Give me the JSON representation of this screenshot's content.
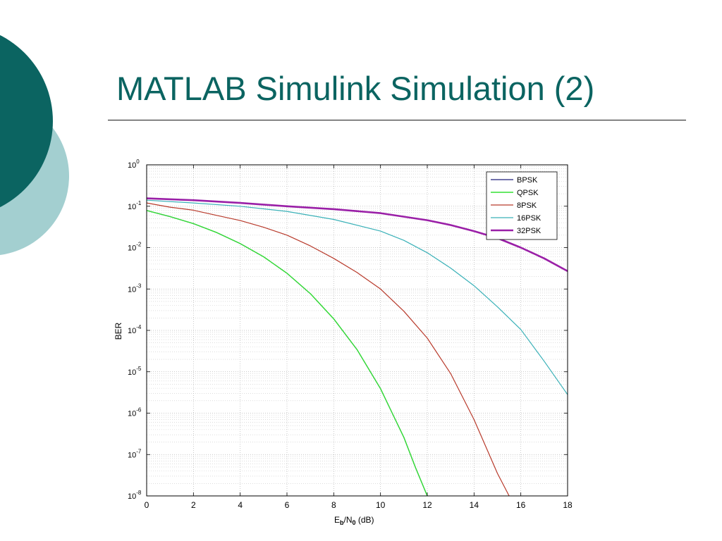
{
  "slide": {
    "title": "MATLAB Simulink Simulation (2)",
    "accent_color": "#0b6461",
    "accent_light_color": "#a3cfd0"
  },
  "chart_data": {
    "type": "line",
    "title": "",
    "xlabel_parts": [
      "E",
      "b",
      "/N",
      "0",
      " (dB)"
    ],
    "ylabel": "BER",
    "xlim": [
      0,
      18
    ],
    "ylim": [
      1e-08,
      1
    ],
    "yscale": "log",
    "grid": true,
    "minor_grid": true,
    "legend_position": "top-right",
    "xticks": [
      0,
      2,
      4,
      6,
      8,
      10,
      12,
      14,
      16,
      18
    ],
    "yticks": [
      {
        "base": "10",
        "exp": "0",
        "value": 1
      },
      {
        "base": "10",
        "exp": "-1",
        "value": 0.1
      },
      {
        "base": "10",
        "exp": "-2",
        "value": 0.01
      },
      {
        "base": "10",
        "exp": "-3",
        "value": 0.001
      },
      {
        "base": "10",
        "exp": "-4",
        "value": 0.0001
      },
      {
        "base": "10",
        "exp": "-5",
        "value": 1e-05
      },
      {
        "base": "10",
        "exp": "-6",
        "value": 1e-06
      },
      {
        "base": "10",
        "exp": "-7",
        "value": 1e-07
      },
      {
        "base": "10",
        "exp": "-8",
        "value": 1e-08
      }
    ],
    "series": [
      {
        "name": "BPSK",
        "color": "#1f1f7a",
        "width": 1.2,
        "x": [
          0,
          1,
          2,
          3,
          4,
          5,
          6,
          7,
          8,
          9,
          10,
          10.5,
          11,
          11.5,
          12
        ],
        "y": [
          0.079,
          0.056,
          0.038,
          0.023,
          0.0125,
          0.006,
          0.0024,
          0.00077,
          0.00019,
          3.4e-05,
          3.9e-06,
          1e-06,
          2.6e-07,
          4.8e-08,
          1e-08
        ]
      },
      {
        "name": "QPSK",
        "color": "#33e033",
        "width": 1.4,
        "x": [
          0,
          1,
          2,
          3,
          4,
          5,
          6,
          7,
          8,
          9,
          10,
          10.5,
          11,
          11.5,
          12
        ],
        "y": [
          0.079,
          0.056,
          0.038,
          0.023,
          0.0125,
          0.006,
          0.0024,
          0.00077,
          0.00019,
          3.4e-05,
          3.9e-06,
          1e-06,
          2.6e-07,
          4.8e-08,
          1e-08
        ]
      },
      {
        "name": "8PSK",
        "color": "#b83a2b",
        "width": 1.2,
        "x": [
          0,
          1,
          2,
          3,
          4,
          5,
          6,
          7,
          8,
          9,
          10,
          11,
          12,
          13,
          14,
          15,
          15.5
        ],
        "y": [
          0.12,
          0.095,
          0.08,
          0.06,
          0.045,
          0.031,
          0.02,
          0.011,
          0.0055,
          0.0025,
          0.001,
          0.00029,
          6.5e-05,
          9e-06,
          7e-07,
          3.5e-08,
          1e-08
        ]
      },
      {
        "name": "16PSK",
        "color": "#3ab1b8",
        "width": 1.2,
        "x": [
          0,
          2,
          4,
          6,
          8,
          10,
          11,
          12,
          13,
          14,
          15,
          16,
          17,
          18
        ],
        "y": [
          0.14,
          0.12,
          0.1,
          0.075,
          0.048,
          0.025,
          0.015,
          0.0075,
          0.0032,
          0.0012,
          0.00037,
          0.000105,
          1.8e-05,
          2.8e-06
        ]
      },
      {
        "name": "32PSK",
        "color": "#9a1fa7",
        "width": 2.6,
        "x": [
          0,
          2,
          4,
          6,
          8,
          10,
          12,
          13,
          14,
          15,
          16,
          17,
          18
        ],
        "y": [
          0.155,
          0.14,
          0.12,
          0.1,
          0.085,
          0.068,
          0.046,
          0.035,
          0.025,
          0.017,
          0.01,
          0.0055,
          0.0027
        ]
      }
    ]
  }
}
